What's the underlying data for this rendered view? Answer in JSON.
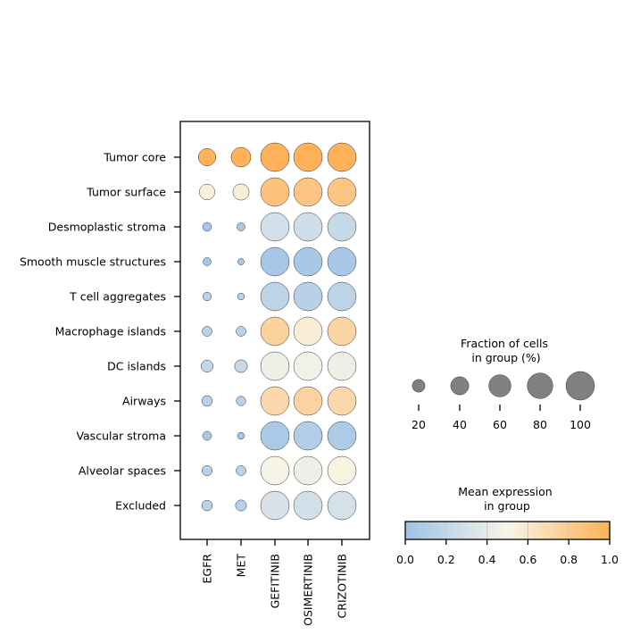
{
  "chart_data": {
    "type": "dotplot",
    "genes": [
      "EGFR",
      "MET",
      "GEFITINIB",
      "OSIMERTINIB",
      "CRIZOTINIB"
    ],
    "groups": [
      "Tumor core",
      "Tumor surface",
      "Desmoplastic stroma",
      "Smooth muscle structures",
      "T cell aggregates",
      "Macrophage islands",
      "DC islands",
      "Airways",
      "Vascular stroma",
      "Alveolar spaces",
      "Excluded"
    ],
    "fraction": [
      [
        37,
        47,
        100,
        100,
        100
      ],
      [
        30,
        32,
        100,
        100,
        100
      ],
      [
        10,
        8,
        100,
        100,
        100
      ],
      [
        8,
        5,
        100,
        100,
        100
      ],
      [
        9,
        6,
        100,
        100,
        100
      ],
      [
        12,
        12,
        100,
        100,
        100
      ],
      [
        18,
        20,
        100,
        100,
        100
      ],
      [
        14,
        11,
        100,
        100,
        100
      ],
      [
        10,
        6,
        100,
        100,
        100
      ],
      [
        13,
        12,
        100,
        100,
        100
      ],
      [
        14,
        15,
        100,
        100,
        100
      ]
    ],
    "mean_expression": [
      [
        0.99,
        0.99,
        0.99,
        0.99,
        0.99
      ],
      [
        0.55,
        0.55,
        0.87,
        0.85,
        0.85
      ],
      [
        0.05,
        0.05,
        0.28,
        0.27,
        0.22
      ],
      [
        0.05,
        0.05,
        0.05,
        0.05,
        0.05
      ],
      [
        0.15,
        0.15,
        0.17,
        0.14,
        0.17
      ],
      [
        0.15,
        0.15,
        0.76,
        0.56,
        0.73
      ],
      [
        0.2,
        0.22,
        0.45,
        0.46,
        0.45
      ],
      [
        0.15,
        0.15,
        0.71,
        0.75,
        0.71
      ],
      [
        0.05,
        0.05,
        0.07,
        0.1,
        0.08
      ],
      [
        0.15,
        0.15,
        0.5,
        0.45,
        0.52
      ],
      [
        0.15,
        0.15,
        0.32,
        0.28,
        0.3
      ]
    ],
    "size_legend": {
      "title": "Fraction of cells\nin group (%)",
      "values": [
        20,
        40,
        60,
        80,
        100
      ],
      "labels": [
        "20",
        "40",
        "60",
        "80",
        "100"
      ]
    },
    "colorbar": {
      "title": "Mean expression\nin group",
      "range": [
        0,
        1
      ],
      "ticks": [
        "0.0",
        "0.2",
        "0.4",
        "0.6",
        "0.8",
        "1.0"
      ],
      "colors": [
        "#9fc3e7",
        "#f7f5e8",
        "#ffb157"
      ]
    }
  }
}
